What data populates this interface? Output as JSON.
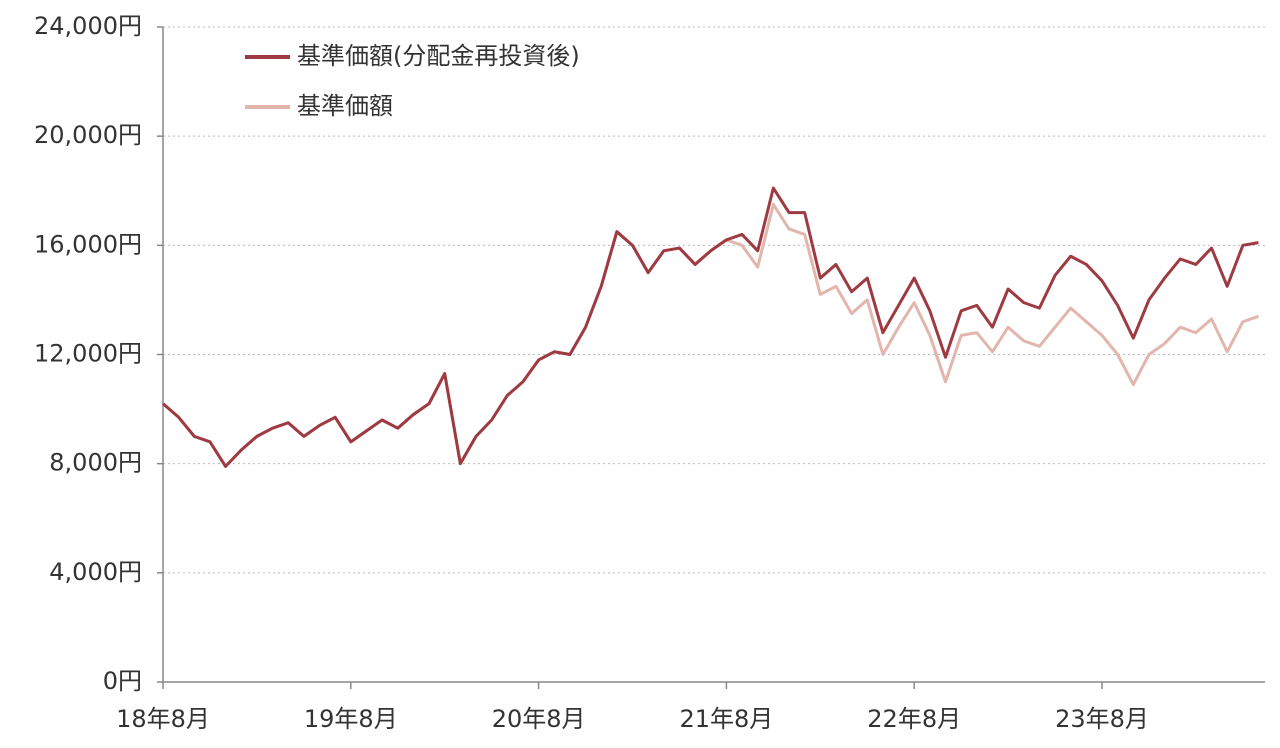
{
  "chart_data": {
    "type": "line",
    "categories": [
      "18年8月",
      null,
      null,
      null,
      null,
      null,
      null,
      null,
      null,
      null,
      null,
      null,
      "19年8月",
      null,
      null,
      null,
      null,
      null,
      null,
      null,
      null,
      null,
      null,
      null,
      "20年8月",
      null,
      null,
      null,
      null,
      null,
      null,
      null,
      null,
      null,
      null,
      null,
      "21年8月",
      null,
      null,
      null,
      null,
      null,
      null,
      null,
      null,
      null,
      null,
      null,
      "22年8月",
      null,
      null,
      null,
      null,
      null,
      null,
      null,
      null,
      null,
      null,
      null,
      "23年8月",
      null,
      null,
      null,
      null,
      null,
      null,
      null,
      null,
      null,
      null
    ],
    "series": [
      {
        "name": "基準価額(分配金再投資後)",
        "color": "#9e3a42",
        "values": [
          10200,
          9700,
          9000,
          8800,
          7900,
          8500,
          9000,
          9300,
          9500,
          9000,
          9400,
          9700,
          8800,
          9200,
          9600,
          9300,
          9800,
          10200,
          11300,
          8000,
          9000,
          9600,
          10500,
          11000,
          11800,
          12100,
          12000,
          13000,
          14500,
          16500,
          16000,
          15000,
          15800,
          15900,
          15300,
          15800,
          16200,
          16400,
          15800,
          18100,
          17200,
          17200,
          14800,
          15300,
          14300,
          14800,
          12800,
          13800,
          14800,
          13600,
          11900,
          13600,
          13800,
          13000,
          14400,
          13900,
          13700,
          14900,
          15600,
          15300,
          14700,
          13800,
          12600,
          14000,
          14800,
          15500,
          15300,
          15900,
          14500,
          16000,
          16100
        ]
      },
      {
        "name": "基準価額",
        "color": "#e2b5ad",
        "values": [
          10200,
          9700,
          9000,
          8800,
          7900,
          8500,
          9000,
          9300,
          9500,
          9000,
          9400,
          9700,
          8800,
          9200,
          9600,
          9300,
          9800,
          10200,
          11300,
          8000,
          9000,
          9600,
          10500,
          11000,
          11800,
          12100,
          12000,
          13000,
          14500,
          16500,
          16000,
          15000,
          15800,
          15900,
          15300,
          15800,
          16200,
          16000,
          15200,
          17500,
          16600,
          16400,
          14200,
          14500,
          13500,
          14000,
          12000,
          13000,
          13900,
          12700,
          11000,
          12700,
          12800,
          12100,
          13000,
          12500,
          12300,
          13000,
          13700,
          13200,
          12700,
          12000,
          10900,
          12000,
          12400,
          13000,
          12800,
          13300,
          12100,
          13200,
          13400
        ]
      }
    ],
    "ylim": [
      0,
      24000
    ],
    "yticks": [
      {
        "value": 0,
        "label": "0円"
      },
      {
        "value": 4000,
        "label": "4,000円"
      },
      {
        "value": 8000,
        "label": "8,000円"
      },
      {
        "value": 12000,
        "label": "12,000円"
      },
      {
        "value": 16000,
        "label": "16,000円"
      },
      {
        "value": 20000,
        "label": "20,000円"
      },
      {
        "value": 24000,
        "label": "24,000円"
      }
    ],
    "grid": true,
    "legend": "top-left"
  }
}
